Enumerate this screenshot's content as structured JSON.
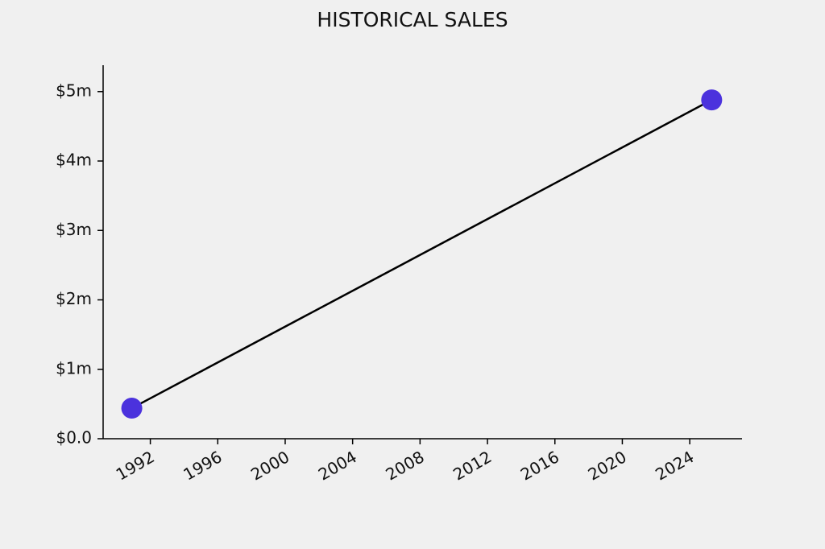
{
  "chart_data": {
    "type": "line",
    "title": "HISTORICAL SALES",
    "x": [
      1990.9,
      2025.3
    ],
    "series": [
      {
        "values": [
          440000,
          4880000
        ],
        "color": "#4b32dd",
        "line_color": "#000000"
      }
    ],
    "xlim": [
      1989.2,
      2027.1
    ],
    "xticks": [
      1992,
      1996,
      2000,
      2004,
      2008,
      2012,
      2016,
      2020,
      2024
    ],
    "ylim": [
      0,
      5380000
    ],
    "yticks": [
      {
        "value": 0,
        "label": "$0.0"
      },
      {
        "value": 1000000,
        "label": "$1m"
      },
      {
        "value": 2000000,
        "label": "$2m"
      },
      {
        "value": 3000000,
        "label": "$3m"
      },
      {
        "value": 4000000,
        "label": "$4m"
      },
      {
        "value": 5000000,
        "label": "$5m"
      }
    ],
    "grid": false
  }
}
